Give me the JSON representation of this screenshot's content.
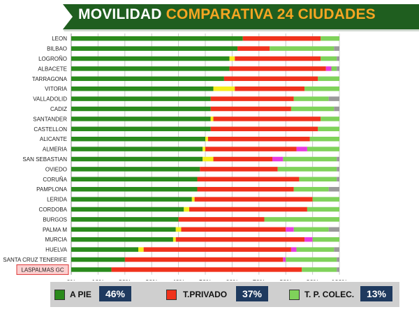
{
  "title": {
    "part1": "MOVILIDAD",
    "part2": "COMPARATIVA 24 CIUDADES"
  },
  "colors": {
    "banner": "#1f5e1f",
    "a_pie": "#2a8a1c",
    "t_privado": "#f0321c",
    "t_colectivo": "#7fd25a",
    "other_yellow": "#f4ee1d",
    "other_magenta": "#e83be0",
    "other_grey": "#9a9a9a"
  },
  "chart_data": {
    "type": "bar",
    "orientation": "horizontal",
    "stacked": true,
    "categories": [
      "LEON",
      "BILBAO",
      "LOGROÑO",
      "ALBACETE",
      "TARRAGONA",
      "VITORIA",
      "VALLADOLID",
      "CADIZ",
      "SANTANDER",
      "CASTELLON",
      "ALICANTE",
      "ALMERIA",
      "SAN SEBASTIAN",
      "OVIEDO",
      "CORUÑA",
      "PAMPLONA",
      "LERIDA",
      "CORDOBA",
      "BURGOS",
      "PALMA M",
      "MURCIA",
      "HUELVA",
      "SANTA CRUZ TENERIFE",
      "LASPALMAS GC"
    ],
    "highlight_category": "LASPALMAS GC",
    "series": [
      {
        "name": "A PIE",
        "color_key": "a_pie",
        "values": [
          64,
          62,
          59,
          59,
          57,
          53,
          52,
          52,
          52,
          52,
          50,
          49,
          49,
          48,
          47,
          47,
          45,
          42,
          40,
          39,
          38,
          25,
          20,
          15
        ]
      },
      {
        "color_key": "other_yellow",
        "values": [
          0,
          0,
          2,
          0,
          0,
          8,
          0,
          0,
          1,
          0,
          1,
          1,
          4,
          0,
          0,
          0,
          1,
          2,
          0,
          2,
          1,
          2,
          0,
          0
        ]
      },
      {
        "name": "T.PRIVADO",
        "color_key": "t_privado",
        "values": [
          29,
          12,
          32,
          36,
          35,
          26,
          31,
          30,
          40,
          40,
          38,
          34,
          22,
          29,
          38,
          36,
          44,
          44,
          32,
          39,
          48,
          55,
          59,
          71
        ]
      },
      {
        "color_key": "other_magenta",
        "values": [
          0,
          0,
          0,
          2,
          0,
          0,
          0,
          0,
          0,
          0,
          0,
          4,
          4,
          0,
          0,
          0,
          0,
          0,
          0,
          3,
          3,
          2,
          1,
          0
        ]
      },
      {
        "name": "T. P. COLEC.",
        "color_key": "t_colectivo",
        "values": [
          7,
          24,
          6,
          2,
          8,
          13,
          13,
          16,
          7,
          8,
          11,
          12,
          20,
          22,
          14,
          13,
          10,
          12,
          28,
          13,
          10,
          14,
          19,
          13
        ]
      },
      {
        "color_key": "other_grey",
        "values": [
          0,
          2,
          1,
          1,
          0,
          0,
          4,
          2,
          0,
          0,
          0,
          0,
          1,
          1,
          1,
          4,
          0,
          0,
          0,
          4,
          0,
          2,
          1,
          1
        ]
      }
    ],
    "x_ticks": [
      "0%",
      "10%",
      "20%",
      "30%",
      "40%",
      "50%",
      "60%",
      "70%",
      "80%",
      "90%",
      "100%"
    ],
    "xlim": [
      0,
      100
    ],
    "grid": true,
    "legend_position": "bottom"
  },
  "legend": [
    {
      "label": "A PIE",
      "value": "46%",
      "color_key": "a_pie"
    },
    {
      "label": "T.PRIVADO",
      "value": "37%",
      "color_key": "t_privado"
    },
    {
      "label": "T. P. COLEC.",
      "value": "13%",
      "color_key": "t_colectivo"
    }
  ]
}
